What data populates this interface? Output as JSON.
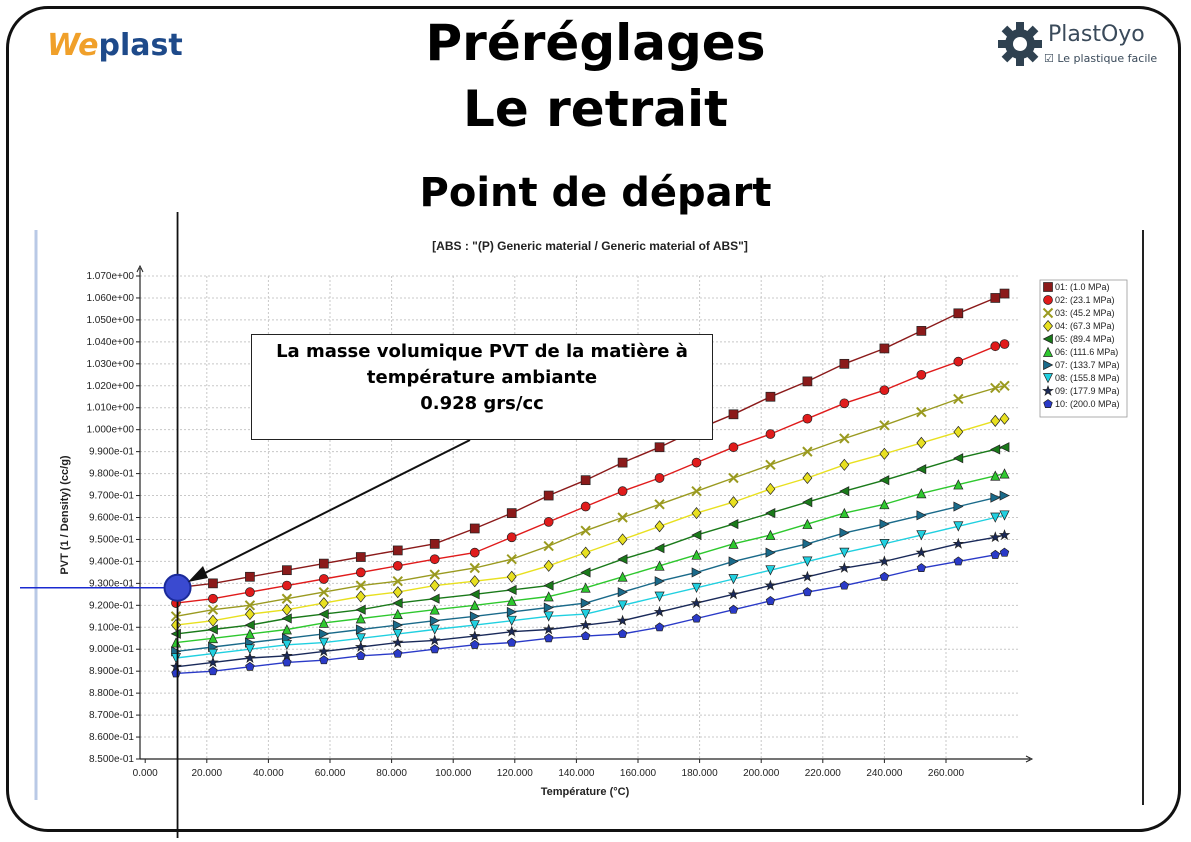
{
  "header": {
    "title_line1": "Préréglages",
    "title_line2": "Le retrait",
    "subtitle": "Point de départ"
  },
  "logos": {
    "weplast_a": "We",
    "weplast_b": "plast",
    "plastoyo_name": "PlastOyo",
    "plastoyo_tagline": "Le plastique facile"
  },
  "annotation": {
    "line1": "La masse volumique PVT de la matière à",
    "line2": "température ambiante",
    "line3": "0.928 grs/cc"
  },
  "chart_data": {
    "type": "line",
    "title": "[ABS : \"(P)  Generic material / Generic material of ABS\"]",
    "xlabel": "Température (°C)",
    "ylabel": "PVT (1 / Density) (cc/g)",
    "xlim": [
      0,
      280
    ],
    "ylim": [
      0.85,
      1.07
    ],
    "x_ticks": [
      {
        "v": 0,
        "label": "0.000"
      },
      {
        "v": 20,
        "label": "20.000"
      },
      {
        "v": 40,
        "label": "40.000"
      },
      {
        "v": 60,
        "label": "60.000"
      },
      {
        "v": 80,
        "label": "80.000"
      },
      {
        "v": 100,
        "label": "100.000"
      },
      {
        "v": 120,
        "label": "120.000"
      },
      {
        "v": 140,
        "label": "140.000"
      },
      {
        "v": 160,
        "label": "160.000"
      },
      {
        "v": 180,
        "label": "180.000"
      },
      {
        "v": 200,
        "label": "200.000"
      },
      {
        "v": 220,
        "label": "220.000"
      },
      {
        "v": 240,
        "label": "240.000"
      },
      {
        "v": 260,
        "label": "260.000"
      }
    ],
    "y_ticks": [
      {
        "v": 0.85,
        "label": "8.500e-01"
      },
      {
        "v": 0.86,
        "label": "8.600e-01"
      },
      {
        "v": 0.87,
        "label": "8.700e-01"
      },
      {
        "v": 0.88,
        "label": "8.800e-01"
      },
      {
        "v": 0.89,
        "label": "8.900e-01"
      },
      {
        "v": 0.9,
        "label": "9.000e-01"
      },
      {
        "v": 0.91,
        "label": "9.100e-01"
      },
      {
        "v": 0.92,
        "label": "9.200e-01"
      },
      {
        "v": 0.93,
        "label": "9.300e-01"
      },
      {
        "v": 0.94,
        "label": "9.400e-01"
      },
      {
        "v": 0.95,
        "label": "9.500e-01"
      },
      {
        "v": 0.96,
        "label": "9.600e-01"
      },
      {
        "v": 0.97,
        "label": "9.700e-01"
      },
      {
        "v": 0.98,
        "label": "9.800e-01"
      },
      {
        "v": 0.99,
        "label": "9.900e-01"
      },
      {
        "v": 1.0,
        "label": "1.000e+00"
      },
      {
        "v": 1.01,
        "label": "1.010e+00"
      },
      {
        "v": 1.02,
        "label": "1.020e+00"
      },
      {
        "v": 1.03,
        "label": "1.030e+00"
      },
      {
        "v": 1.04,
        "label": "1.040e+00"
      },
      {
        "v": 1.05,
        "label": "1.050e+00"
      },
      {
        "v": 1.06,
        "label": "1.060e+00"
      },
      {
        "v": 1.07,
        "label": "1.070e+00"
      }
    ],
    "grid": true,
    "legend_position": "right",
    "x": [
      10,
      22,
      34,
      46,
      58,
      70,
      82,
      94,
      107,
      119,
      131,
      143,
      155,
      167,
      179,
      191,
      203,
      215,
      227,
      240,
      252,
      264,
      276,
      279
    ],
    "series": [
      {
        "name": "01: (1.0 MPa)",
        "color": "#8b1a1a",
        "marker": "square",
        "values": [
          0.928,
          0.93,
          0.933,
          0.936,
          0.939,
          0.942,
          0.945,
          0.948,
          0.955,
          0.962,
          0.97,
          0.977,
          0.985,
          0.992,
          1.0,
          1.007,
          1.015,
          1.022,
          1.03,
          1.037,
          1.045,
          1.053,
          1.06,
          1.062
        ]
      },
      {
        "name": "02: (23.1 MPa)",
        "color": "#e01b1b",
        "marker": "circle",
        "values": [
          0.921,
          0.923,
          0.926,
          0.929,
          0.932,
          0.935,
          0.938,
          0.941,
          0.944,
          0.951,
          0.958,
          0.965,
          0.972,
          0.978,
          0.985,
          0.992,
          0.998,
          1.005,
          1.012,
          1.018,
          1.025,
          1.031,
          1.038,
          1.039
        ]
      },
      {
        "name": "03: (45.2 MPa)",
        "color": "#9a9a20",
        "marker": "x",
        "values": [
          0.915,
          0.918,
          0.92,
          0.923,
          0.926,
          0.929,
          0.931,
          0.934,
          0.937,
          0.941,
          0.947,
          0.954,
          0.96,
          0.966,
          0.972,
          0.978,
          0.984,
          0.99,
          0.996,
          1.002,
          1.008,
          1.014,
          1.019,
          1.02
        ]
      },
      {
        "name": "04: (67.3 MPa)",
        "color": "#e8e020",
        "marker": "diamond",
        "values": [
          0.911,
          0.913,
          0.916,
          0.918,
          0.921,
          0.924,
          0.926,
          0.929,
          0.931,
          0.933,
          0.938,
          0.944,
          0.95,
          0.956,
          0.962,
          0.967,
          0.973,
          0.978,
          0.984,
          0.989,
          0.994,
          0.999,
          1.004,
          1.005
        ]
      },
      {
        "name": "05: (89.4 MPa)",
        "color": "#1a7a1a",
        "marker": "tri-left",
        "values": [
          0.907,
          0.909,
          0.911,
          0.914,
          0.916,
          0.918,
          0.921,
          0.923,
          0.925,
          0.927,
          0.929,
          0.935,
          0.941,
          0.946,
          0.952,
          0.957,
          0.962,
          0.967,
          0.972,
          0.977,
          0.982,
          0.987,
          0.991,
          0.992
        ]
      },
      {
        "name": "06: (111.6 MPa)",
        "color": "#2ec82e",
        "marker": "tri-up",
        "values": [
          0.903,
          0.905,
          0.907,
          0.909,
          0.912,
          0.914,
          0.916,
          0.918,
          0.92,
          0.922,
          0.924,
          0.928,
          0.933,
          0.938,
          0.943,
          0.948,
          0.952,
          0.957,
          0.962,
          0.966,
          0.971,
          0.975,
          0.979,
          0.98
        ]
      },
      {
        "name": "07: (133.7 MPa)",
        "color": "#1a6a8a",
        "marker": "tri-right",
        "values": [
          0.899,
          0.901,
          0.903,
          0.905,
          0.907,
          0.909,
          0.911,
          0.913,
          0.915,
          0.917,
          0.919,
          0.921,
          0.926,
          0.931,
          0.935,
          0.94,
          0.944,
          0.948,
          0.953,
          0.957,
          0.961,
          0.965,
          0.969,
          0.97
        ]
      },
      {
        "name": "08: (155.8 MPa)",
        "color": "#20d0e0",
        "marker": "tri-down",
        "values": [
          0.896,
          0.898,
          0.9,
          0.902,
          0.903,
          0.905,
          0.907,
          0.909,
          0.911,
          0.913,
          0.915,
          0.916,
          0.92,
          0.924,
          0.928,
          0.932,
          0.936,
          0.94,
          0.944,
          0.948,
          0.952,
          0.956,
          0.96,
          0.961
        ]
      },
      {
        "name": "09: (177.9 MPa)",
        "color": "#1a2a5a",
        "marker": "star",
        "values": [
          0.892,
          0.894,
          0.896,
          0.897,
          0.899,
          0.901,
          0.903,
          0.904,
          0.906,
          0.908,
          0.909,
          0.911,
          0.913,
          0.917,
          0.921,
          0.925,
          0.929,
          0.933,
          0.937,
          0.94,
          0.944,
          0.948,
          0.951,
          0.952
        ]
      },
      {
        "name": "10: (200.0 MPa)",
        "color": "#2a3ac8",
        "marker": "pentagon",
        "values": [
          0.889,
          0.89,
          0.892,
          0.894,
          0.895,
          0.897,
          0.898,
          0.9,
          0.902,
          0.903,
          0.905,
          0.906,
          0.907,
          0.91,
          0.914,
          0.918,
          0.922,
          0.926,
          0.929,
          0.933,
          0.937,
          0.94,
          0.943,
          0.944
        ]
      }
    ]
  }
}
